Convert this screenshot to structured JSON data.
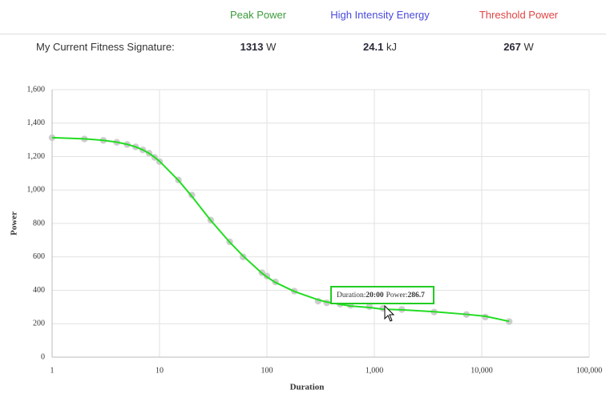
{
  "header": {
    "columns": [
      {
        "label": "Peak Power",
        "color": "#3c9c3c"
      },
      {
        "label": "High Intensity Energy",
        "color": "#4a4adc"
      },
      {
        "label": "Threshold Power",
        "color": "#e04444"
      }
    ],
    "row_label": "My Current Fitness Signature:",
    "values": [
      {
        "value": "1313",
        "unit": "W"
      },
      {
        "value": "24.1",
        "unit": "kJ"
      },
      {
        "value": "267",
        "unit": "W"
      }
    ]
  },
  "chart_data": {
    "type": "line",
    "x_label": "Duration",
    "y_label": "Power",
    "x": [
      1,
      2,
      3,
      4,
      5,
      6,
      7,
      8,
      9,
      10,
      15,
      20,
      30,
      45,
      60,
      90,
      100,
      120,
      180,
      300,
      360,
      480,
      600,
      900,
      1200,
      1800,
      3600,
      7200,
      10800,
      18000
    ],
    "series": [
      {
        "color": "#c4c4c4",
        "markers": true,
        "line": false,
        "values": [
          1313,
          1305,
          1297,
          1285,
          1272,
          1258,
          1240,
          1220,
          1195,
          1170,
          1060,
          970,
          820,
          690,
          600,
          505,
          485,
          450,
          395,
          335,
          325,
          318,
          310,
          303,
          292,
          285,
          270,
          255,
          240,
          213
        ]
      },
      {
        "color": "#22dd22",
        "markers": false,
        "line": true,
        "values": [
          1313,
          1306,
          1297,
          1286,
          1273,
          1258,
          1240,
          1219,
          1196,
          1172,
          1058,
          962,
          818,
          688,
          605,
          502,
          480,
          447,
          393,
          343,
          330,
          316,
          306,
          297,
          287,
          283,
          272,
          256,
          245,
          214
        ]
      }
    ],
    "xscale": "log",
    "xlim": [
      1,
      100000
    ],
    "xticks": [
      1,
      10,
      100,
      {
        "value": 1000,
        "label": "1,000"
      },
      {
        "value": 10000,
        "label": "10,000"
      },
      {
        "value": 100000,
        "label": "100,000"
      }
    ],
    "ylim": [
      0,
      1600
    ],
    "yticks": [
      0,
      200,
      400,
      600,
      800,
      {
        "value": 1000,
        "label": "1,000"
      },
      {
        "value": 1200,
        "label": "1,200"
      },
      {
        "value": 1400,
        "label": "1,400"
      },
      {
        "value": 1600,
        "label": "1,600"
      }
    ],
    "grid": true,
    "tooltip": {
      "duration_label": "Duration:",
      "duration": "20:00",
      "power_label": "Power:",
      "power": 286.7,
      "color": "#22cc22"
    }
  }
}
